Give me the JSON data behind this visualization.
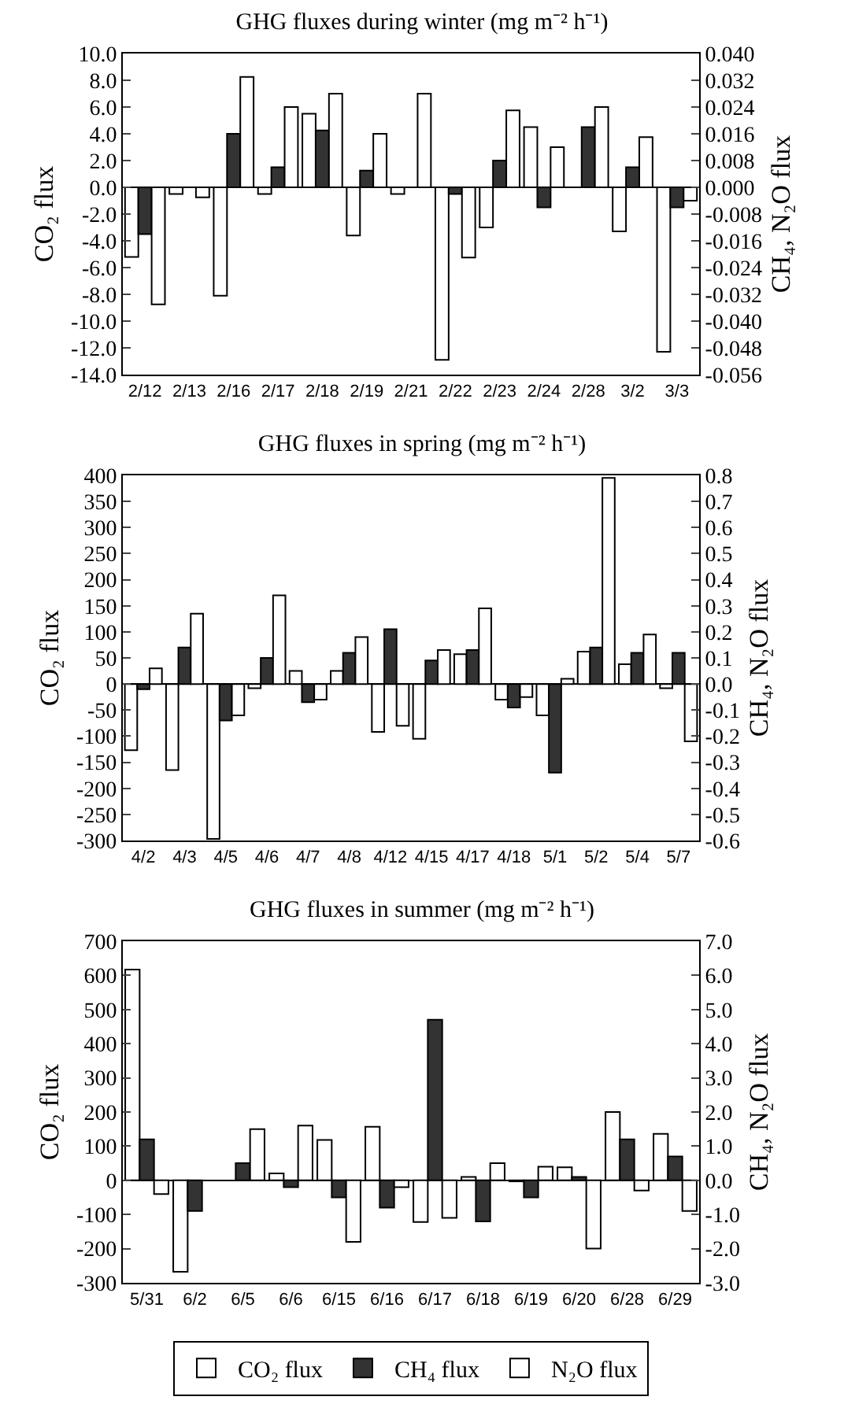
{
  "chart_data": [
    {
      "type": "bar",
      "title": "GHG fluxes during winter (mg m⁻² h⁻¹)",
      "ylabel": "CO₂ flux",
      "y2label": "CH₄, N₂O flux",
      "legend": false,
      "categories": [
        "2/12",
        "2/13",
        "2/16",
        "2/17",
        "2/18",
        "2/19",
        "2/21",
        "2/22",
        "2/23",
        "2/24",
        "2/28",
        "3/2",
        "3/3"
      ],
      "series": [
        {
          "color": "#ffffff",
          "values": [
            -5.2,
            -0.5,
            -8.1,
            -0.5,
            5.5,
            -3.6,
            -0.5,
            -12.9,
            -3.0,
            4.5,
            null,
            -3.3,
            -12.3
          ]
        },
        {
          "color": "#333333",
          "axis": "y2",
          "values": [
            -0.014,
            null,
            0.016,
            0.006,
            0.017,
            0.005,
            null,
            -0.002,
            0.008,
            -0.006,
            0.018,
            0.006,
            -0.006
          ]
        },
        {
          "color": "#ffffff",
          "axis": "y2",
          "values": [
            -0.035,
            -0.003,
            0.033,
            0.024,
            0.028,
            0.016,
            0.028,
            -0.021,
            0.023,
            0.012,
            0.024,
            0.015,
            -0.004
          ]
        }
      ],
      "ylim": [
        -14,
        10
      ],
      "yticks": [
        {
          "value": 10,
          "label": "10.0"
        },
        {
          "value": 8,
          "label": "8.0"
        },
        {
          "value": 6,
          "label": "6.0"
        },
        {
          "value": 4,
          "label": "4.0"
        },
        {
          "value": 2,
          "label": "2.0"
        },
        {
          "value": 0,
          "label": "0.0"
        },
        {
          "value": -2,
          "label": "-2.0"
        },
        {
          "value": -4,
          "label": "-4.0"
        },
        {
          "value": -6,
          "label": "-6.0"
        },
        {
          "value": -8,
          "label": "-8.0"
        },
        {
          "value": -10,
          "label": "-10.0"
        },
        {
          "value": -12,
          "label": "-12.0"
        },
        {
          "value": -14,
          "label": "-14.0"
        }
      ],
      "y2lim": [
        -0.056,
        0.04
      ],
      "y2ticks": [
        {
          "value": 0.04,
          "label": "0.040"
        },
        {
          "value": 0.032,
          "label": "0.032"
        },
        {
          "value": 0.024,
          "label": "0.024"
        },
        {
          "value": 0.016,
          "label": "0.016"
        },
        {
          "value": 0.008,
          "label": "0.008"
        },
        {
          "value": 0,
          "label": "0.000"
        },
        {
          "value": -0.008,
          "label": "-0.008"
        },
        {
          "value": -0.016,
          "label": "-0.016"
        },
        {
          "value": -0.024,
          "label": "-0.024"
        },
        {
          "value": -0.032,
          "label": "-0.032"
        },
        {
          "value": -0.04,
          "label": "-0.040"
        },
        {
          "value": -0.048,
          "label": "-0.048"
        },
        {
          "value": -0.056,
          "label": "-0.056"
        }
      ]
    },
    {
      "type": "bar",
      "title": "GHG fluxes in spring (mg m⁻² h⁻¹)",
      "ylabel": "CO₂ flux",
      "y2label": "CH₄, N₂O flux",
      "legend": false,
      "categories": [
        "4/2",
        "4/3",
        "4/5",
        "4/6",
        "4/7",
        "4/8",
        "4/12",
        "4/15",
        "4/17",
        "4/18",
        "5/1",
        "5/2",
        "5/4",
        "5/7"
      ],
      "series": [
        {
          "color": "#ffffff",
          "values": [
            -127,
            -165,
            -297,
            -8,
            25,
            25,
            -92,
            -105,
            57,
            -30,
            -60,
            62,
            38,
            -8
          ]
        },
        {
          "color": "#333333",
          "axis": "y2",
          "values": [
            -0.02,
            0.14,
            -0.14,
            0.1,
            -0.07,
            0.12,
            0.21,
            0.09,
            0.13,
            -0.09,
            -0.34,
            0.14,
            0.12,
            0.12
          ]
        },
        {
          "color": "#ffffff",
          "axis": "y2",
          "values": [
            0.06,
            0.27,
            -0.12,
            0.34,
            -0.06,
            0.18,
            -0.16,
            0.13,
            0.29,
            -0.05,
            0.02,
            0.79,
            0.19,
            -0.22
          ]
        }
      ],
      "ylim": [
        -300,
        400
      ],
      "yticks": [
        400,
        350,
        300,
        250,
        200,
        150,
        100,
        50,
        0,
        -50,
        -100,
        -150,
        -200,
        -250,
        -300
      ],
      "y2lim": [
        -0.6,
        0.8
      ],
      "y2ticks": [
        0.8,
        0.7,
        0.6,
        0.5,
        0.4,
        0.3,
        0.2,
        0.1,
        {
          "value": 0,
          "label": "0.0"
        },
        -0.1,
        -0.2,
        -0.3,
        -0.4,
        -0.5,
        -0.6
      ]
    },
    {
      "type": "bar",
      "title": "GHG fluxes in summer (mg m⁻² h⁻¹)",
      "ylabel": "CO₂ flux",
      "y2label": "CH₄, N₂O flux",
      "legend": "bottom",
      "categories": [
        "5/31",
        "6/2",
        "6/5",
        "6/6",
        "6/15",
        "6/16",
        "6/17",
        "6/18",
        "6/19",
        "6/20",
        "6/28",
        "6/29"
      ],
      "series": [
        {
          "name": "CO₂ flux",
          "color": "#ffffff",
          "values": [
            617,
            -268,
            null,
            20,
            118,
            157,
            -122,
            10,
            -3,
            38,
            200,
            136
          ]
        },
        {
          "name": "CH₄ flux",
          "color": "#333333",
          "axis": "y2",
          "values": [
            1.2,
            -0.9,
            0.5,
            -0.2,
            -0.5,
            -0.8,
            4.7,
            -1.2,
            -0.5,
            0.1,
            1.2,
            0.7
          ]
        },
        {
          "name": "N₂O flux",
          "color": "#ffffff",
          "axis": "y2",
          "values": [
            -0.4,
            null,
            1.5,
            1.6,
            -1.8,
            -0.2,
            -1.1,
            0.5,
            0.4,
            -2.0,
            -0.3,
            -0.9
          ]
        }
      ],
      "ylim": [
        -300,
        700
      ],
      "yticks": [
        700,
        600,
        500,
        400,
        300,
        200,
        100,
        0,
        -100,
        -200,
        -300
      ],
      "y2lim": [
        -3,
        7
      ],
      "y2ticks": [
        {
          "value": 7,
          "label": "7.0"
        },
        {
          "value": 6,
          "label": "6.0"
        },
        {
          "value": 5,
          "label": "5.0"
        },
        {
          "value": 4,
          "label": "4.0"
        },
        {
          "value": 3,
          "label": "3.0"
        },
        {
          "value": 2,
          "label": "2.0"
        },
        {
          "value": 1,
          "label": "1.0"
        },
        {
          "value": 0,
          "label": "0.0"
        },
        {
          "value": -1,
          "label": "-1.0"
        },
        {
          "value": -2,
          "label": "-2.0"
        },
        {
          "value": -3,
          "label": "-3.0"
        }
      ]
    }
  ]
}
